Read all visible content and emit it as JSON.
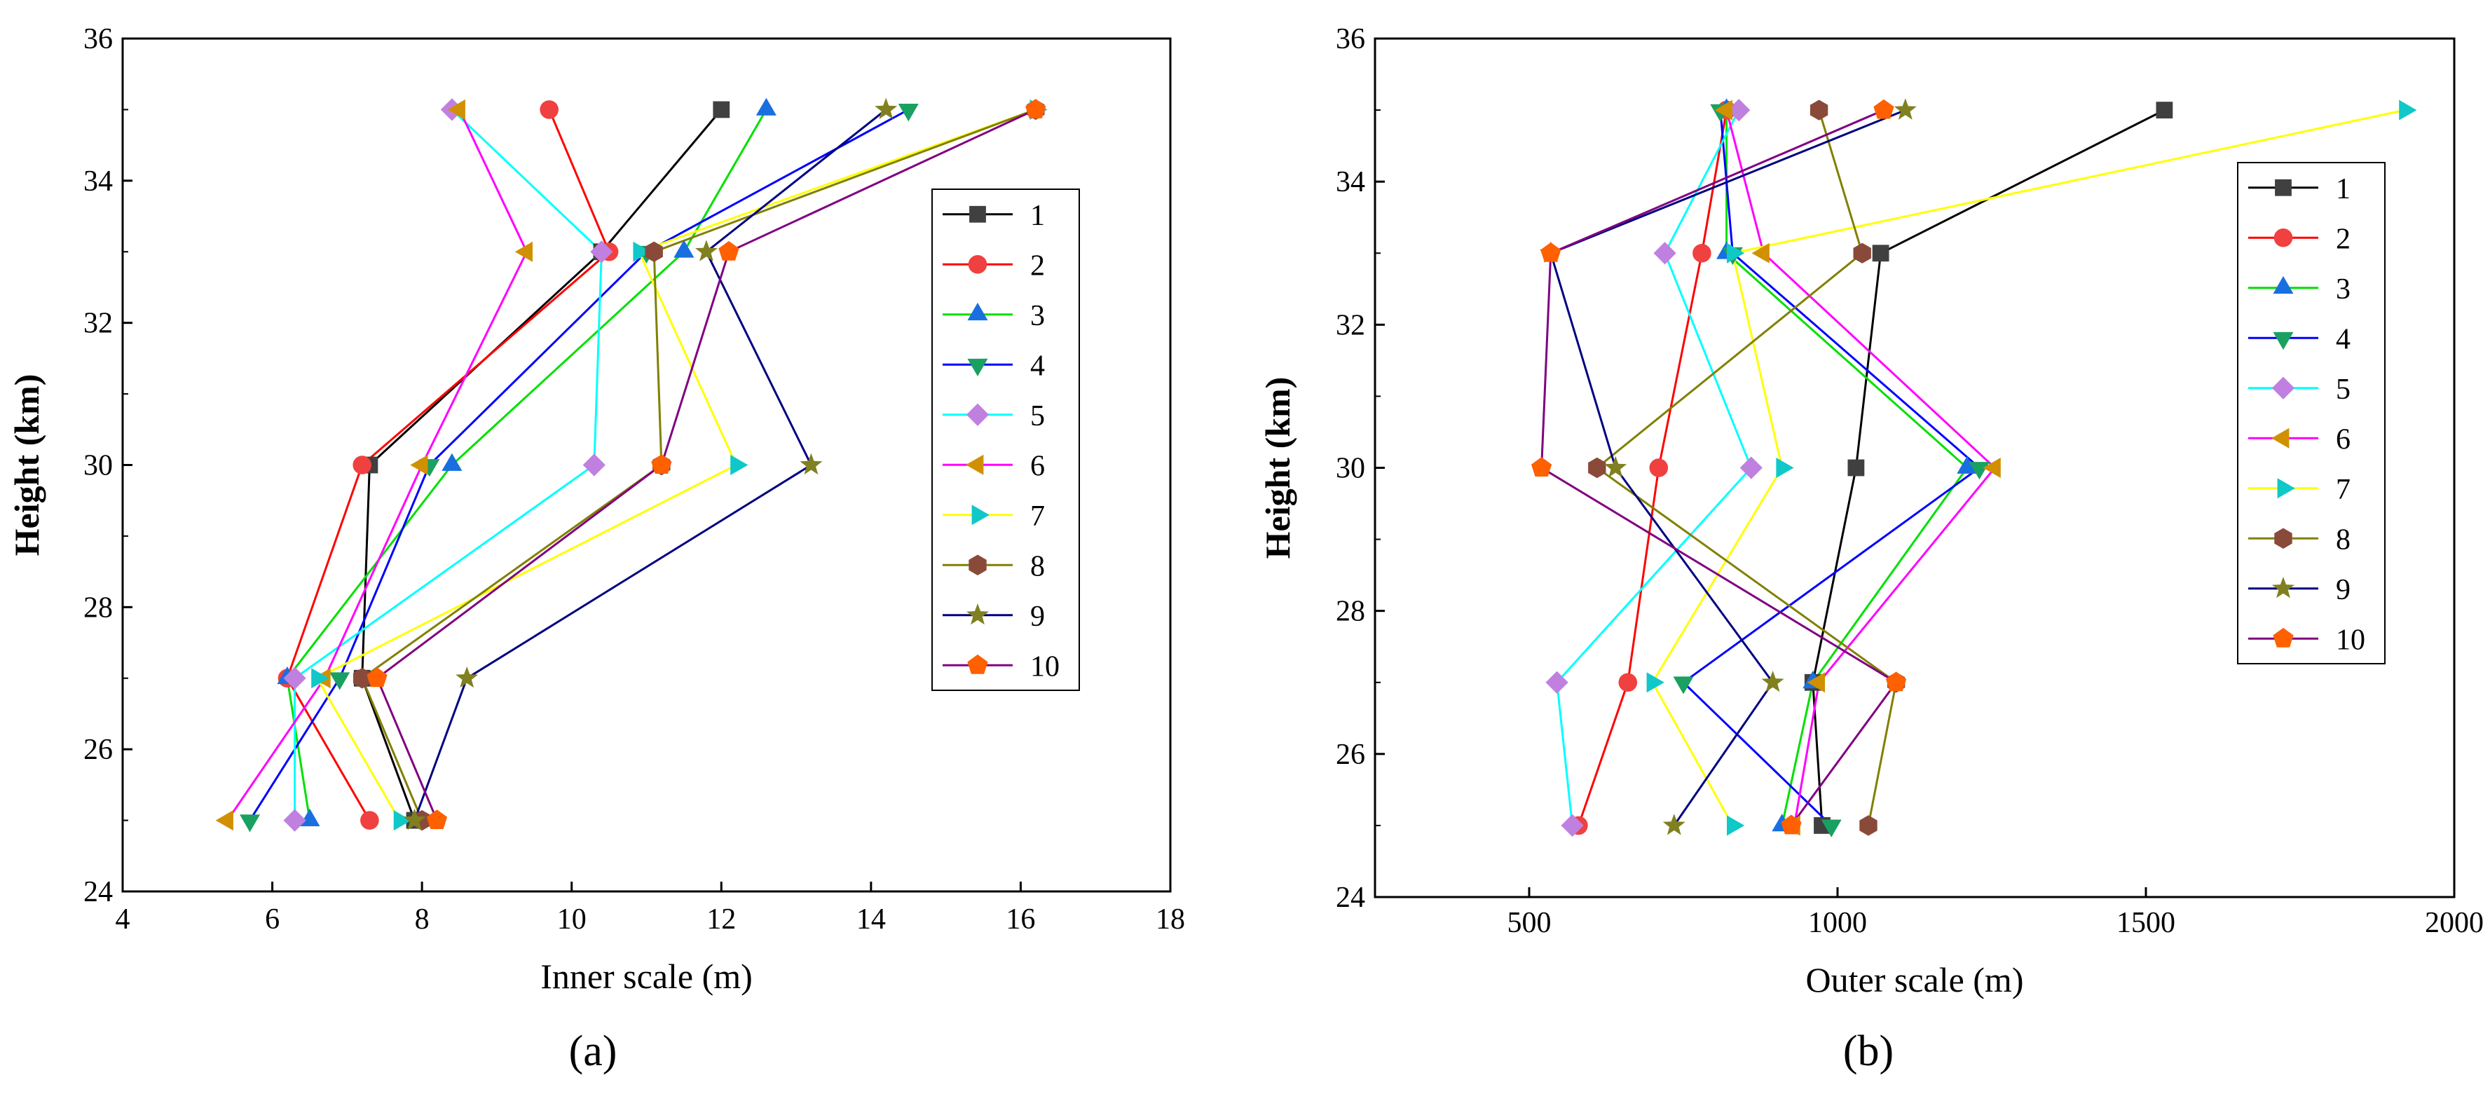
{
  "figure": {
    "panel_labels": [
      "(a)",
      "(b)"
    ],
    "series_colors": {
      "1": "#000000",
      "2": "#ff0000",
      "3": "#00e000",
      "4": "#0000ff",
      "5": "#00ffff",
      "6": "#ff00ff",
      "7": "#ffff00",
      "8": "#808000",
      "9": "#000080",
      "10": "#800080"
    },
    "marker_colors": {
      "1": "#404040",
      "2": "#f04040",
      "3": "#1a6fe0",
      "4": "#1aa060",
      "5": "#c080e0",
      "6": "#d09000",
      "7": "#10c8c8",
      "8": "#8a4a3a",
      "9": "#808020",
      "10": "#ff6000"
    },
    "marker_shapes": {
      "1": "square",
      "2": "circle",
      "3": "triangle-up",
      "4": "triangle-down",
      "5": "diamond",
      "6": "triangle-left",
      "7": "triangle-right",
      "8": "hexagon",
      "9": "star",
      "10": "pentagon"
    }
  },
  "chart_data": [
    {
      "type": "line",
      "panel": "(a)",
      "xlabel": "Inner scale (m)",
      "ylabel": "Height (km)",
      "xlim": [
        4,
        18
      ],
      "ylim": [
        24,
        36
      ],
      "xticks": [
        4,
        6,
        8,
        10,
        12,
        14,
        16,
        18
      ],
      "yticks": [
        24,
        26,
        28,
        30,
        32,
        34,
        36
      ],
      "legend_position": "right",
      "heights": [
        25,
        27,
        30,
        33,
        35
      ],
      "series": [
        {
          "name": "1",
          "values": [
            7.9,
            7.2,
            7.3,
            10.4,
            12.0
          ]
        },
        {
          "name": "2",
          "values": [
            7.3,
            6.2,
            7.2,
            10.5,
            9.7
          ]
        },
        {
          "name": "3",
          "values": [
            6.5,
            6.2,
            8.4,
            11.5,
            12.6
          ]
        },
        {
          "name": "4",
          "values": [
            5.7,
            6.9,
            8.1,
            11.0,
            14.5
          ]
        },
        {
          "name": "5",
          "values": [
            6.3,
            6.3,
            10.3,
            10.4,
            8.4
          ]
        },
        {
          "name": "6",
          "values": [
            5.4,
            6.7,
            8.0,
            9.4,
            8.5
          ]
        },
        {
          "name": "7",
          "values": [
            7.7,
            6.6,
            12.2,
            10.9,
            16.2
          ]
        },
        {
          "name": "8",
          "values": [
            8.0,
            7.2,
            11.2,
            11.1,
            16.2
          ]
        },
        {
          "name": "9",
          "values": [
            7.9,
            8.6,
            13.2,
            11.8,
            14.2
          ]
        },
        {
          "name": "10",
          "values": [
            8.2,
            7.4,
            11.2,
            12.1,
            16.2
          ]
        }
      ]
    },
    {
      "type": "line",
      "panel": "(b)",
      "xlabel": "Outer scale (m)",
      "ylabel": "Height (km)",
      "xlim": [
        250,
        2000
      ],
      "ylim": [
        24,
        36
      ],
      "xticks": [
        500,
        1000,
        1500,
        2000
      ],
      "yticks": [
        24,
        26,
        28,
        30,
        32,
        34,
        36
      ],
      "legend_position": "right",
      "heights": [
        25,
        27,
        30,
        33,
        35
      ],
      "series": [
        {
          "name": "1",
          "values": [
            975,
            960,
            1030,
            1070,
            1530
          ]
        },
        {
          "name": "2",
          "values": [
            580,
            660,
            710,
            780,
            820
          ]
        },
        {
          "name": "3",
          "values": [
            910,
            960,
            1210,
            820,
            820
          ]
        },
        {
          "name": "4",
          "values": [
            990,
            750,
            1230,
            830,
            810
          ]
        },
        {
          "name": "5",
          "values": [
            570,
            545,
            860,
            720,
            840
          ]
        },
        {
          "name": "6",
          "values": [
            930,
            970,
            1255,
            880,
            820
          ]
        },
        {
          "name": "7",
          "values": [
            830,
            700,
            910,
            830,
            1920
          ]
        },
        {
          "name": "8",
          "values": [
            1050,
            1095,
            610,
            1040,
            970
          ]
        },
        {
          "name": "9",
          "values": [
            735,
            895,
            640,
            535,
            1110
          ]
        },
        {
          "name": "10",
          "values": [
            925,
            1095,
            520,
            535,
            1075
          ]
        }
      ]
    }
  ]
}
